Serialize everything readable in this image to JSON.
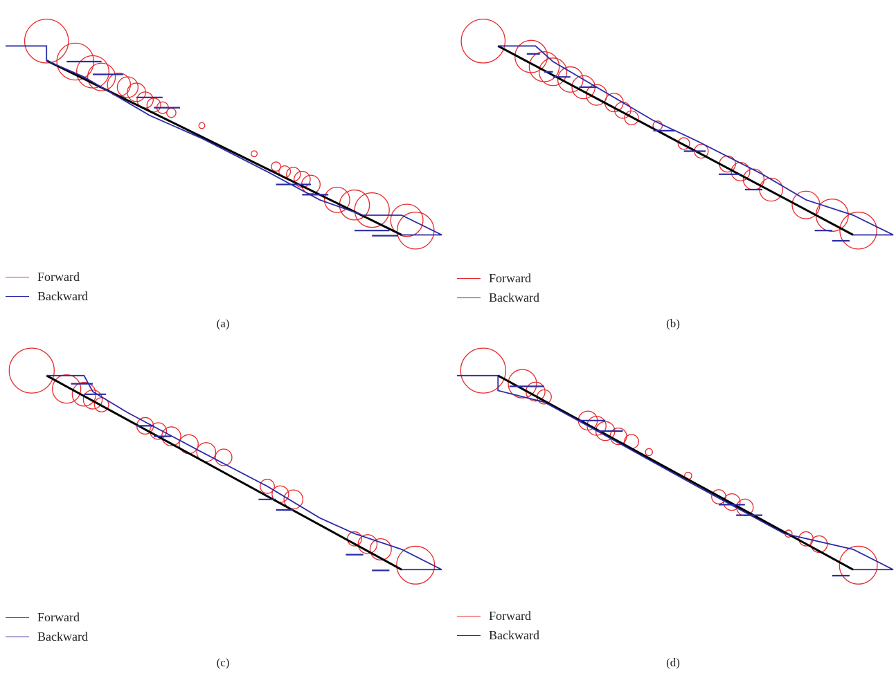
{
  "colors": {
    "forward": "#e8292c",
    "backward": "#2b2ba6",
    "path": "#000000"
  },
  "legend": [
    {
      "label": "Forward",
      "color_key": "forward"
    },
    {
      "label": "Backward",
      "color_key": "backward"
    }
  ],
  "panels": [
    {
      "caption": "(a)",
      "path": [
        [
          0.094,
          0.196
        ],
        [
          0.908,
          0.877
        ]
      ],
      "backward_polyline": [
        [
          0,
          0.139
        ],
        [
          0.094,
          0.139
        ],
        [
          0.094,
          0.196
        ],
        [
          0.18,
          0.26
        ],
        [
          0.33,
          0.41
        ],
        [
          0.45,
          0.5
        ],
        [
          0.6,
          0.63
        ],
        [
          0.72,
          0.74
        ],
        [
          0.82,
          0.8
        ],
        [
          0.908,
          0.8
        ],
        [
          1.0,
          0.877
        ],
        [
          0.908,
          0.877
        ]
      ],
      "backward_rungs": [
        [
          0.14,
          0.22,
          0.2
        ],
        [
          0.2,
          0.27,
          0.25
        ],
        [
          0.3,
          0.36,
          0.34
        ],
        [
          0.34,
          0.4,
          0.38
        ],
        [
          0.62,
          0.7,
          0.68
        ],
        [
          0.68,
          0.74,
          0.72
        ],
        [
          0.8,
          0.88,
          0.86
        ],
        [
          0.84,
          0.9,
          0.88
        ]
      ],
      "forward_circles": [
        [
          0.094,
          0.12,
          0.095
        ],
        [
          0.16,
          0.2,
          0.08
        ],
        [
          0.2,
          0.24,
          0.07
        ],
        [
          0.22,
          0.26,
          0.06
        ],
        [
          0.26,
          0.29,
          0.05
        ],
        [
          0.28,
          0.3,
          0.045
        ],
        [
          0.3,
          0.32,
          0.04
        ],
        [
          0.32,
          0.35,
          0.035
        ],
        [
          0.34,
          0.37,
          0.03
        ],
        [
          0.36,
          0.38,
          0.025
        ],
        [
          0.38,
          0.4,
          0.02
        ],
        [
          0.45,
          0.45,
          0.013
        ],
        [
          0.57,
          0.56,
          0.013
        ],
        [
          0.62,
          0.61,
          0.02
        ],
        [
          0.64,
          0.63,
          0.025
        ],
        [
          0.66,
          0.64,
          0.03
        ],
        [
          0.68,
          0.66,
          0.035
        ],
        [
          0.7,
          0.68,
          0.04
        ],
        [
          0.76,
          0.74,
          0.055
        ],
        [
          0.8,
          0.76,
          0.065
        ],
        [
          0.84,
          0.78,
          0.075
        ],
        [
          0.94,
          0.86,
          0.08
        ],
        [
          0.92,
          0.82,
          0.07
        ]
      ]
    },
    {
      "caption": "(b)",
      "path": [
        [
          0.094,
          0.139
        ],
        [
          0.908,
          0.877
        ]
      ],
      "backward_polyline": [
        [
          0.094,
          0.139
        ],
        [
          0.18,
          0.139
        ],
        [
          0.22,
          0.2
        ],
        [
          0.32,
          0.3
        ],
        [
          0.45,
          0.43
        ],
        [
          0.55,
          0.51
        ],
        [
          0.7,
          0.64
        ],
        [
          0.8,
          0.74
        ],
        [
          0.908,
          0.8
        ],
        [
          1.0,
          0.877
        ],
        [
          0.908,
          0.877
        ]
      ],
      "backward_rungs": [
        [
          0.16,
          0.19,
          0.17
        ],
        [
          0.2,
          0.22,
          0.24
        ],
        [
          0.22,
          0.26,
          0.26
        ],
        [
          0.28,
          0.32,
          0.3
        ],
        [
          0.45,
          0.5,
          0.47
        ],
        [
          0.52,
          0.57,
          0.55
        ],
        [
          0.6,
          0.65,
          0.64
        ],
        [
          0.66,
          0.7,
          0.7
        ],
        [
          0.82,
          0.86,
          0.86
        ],
        [
          0.86,
          0.9,
          0.9
        ]
      ],
      "forward_circles": [
        [
          0.06,
          0.12,
          0.095
        ],
        [
          0.17,
          0.18,
          0.07
        ],
        [
          0.2,
          0.22,
          0.065
        ],
        [
          0.22,
          0.24,
          0.06
        ],
        [
          0.26,
          0.27,
          0.055
        ],
        [
          0.29,
          0.3,
          0.05
        ],
        [
          0.32,
          0.33,
          0.045
        ],
        [
          0.36,
          0.36,
          0.04
        ],
        [
          0.38,
          0.39,
          0.035
        ],
        [
          0.4,
          0.42,
          0.03
        ],
        [
          0.46,
          0.45,
          0.02
        ],
        [
          0.52,
          0.52,
          0.025
        ],
        [
          0.56,
          0.55,
          0.03
        ],
        [
          0.62,
          0.6,
          0.035
        ],
        [
          0.65,
          0.63,
          0.04
        ],
        [
          0.68,
          0.66,
          0.045
        ],
        [
          0.72,
          0.7,
          0.05
        ],
        [
          0.8,
          0.76,
          0.06
        ],
        [
          0.86,
          0.8,
          0.07
        ],
        [
          0.92,
          0.86,
          0.08
        ]
      ]
    },
    {
      "caption": "(c)",
      "path": [
        [
          0.094,
          0.139
        ],
        [
          0.908,
          0.877
        ]
      ],
      "backward_polyline": [
        [
          0.094,
          0.139
        ],
        [
          0.18,
          0.139
        ],
        [
          0.2,
          0.2
        ],
        [
          0.28,
          0.28
        ],
        [
          0.45,
          0.43
        ],
        [
          0.6,
          0.56
        ],
        [
          0.72,
          0.68
        ],
        [
          0.8,
          0.74
        ],
        [
          0.908,
          0.8
        ],
        [
          1.0,
          0.877
        ],
        [
          0.908,
          0.877
        ]
      ],
      "backward_rungs": [
        [
          0.15,
          0.2,
          0.17
        ],
        [
          0.18,
          0.23,
          0.21
        ],
        [
          0.3,
          0.34,
          0.33
        ],
        [
          0.34,
          0.38,
          0.37
        ],
        [
          0.58,
          0.62,
          0.61
        ],
        [
          0.62,
          0.66,
          0.65
        ],
        [
          0.78,
          0.82,
          0.82
        ],
        [
          0.84,
          0.88,
          0.88
        ]
      ],
      "forward_circles": [
        [
          0.06,
          0.12,
          0.095
        ],
        [
          0.14,
          0.19,
          0.06
        ],
        [
          0.18,
          0.21,
          0.05
        ],
        [
          0.2,
          0.23,
          0.04
        ],
        [
          0.22,
          0.25,
          0.03
        ],
        [
          0.32,
          0.33,
          0.035
        ],
        [
          0.35,
          0.35,
          0.035
        ],
        [
          0.38,
          0.37,
          0.04
        ],
        [
          0.42,
          0.4,
          0.04
        ],
        [
          0.46,
          0.43,
          0.04
        ],
        [
          0.5,
          0.45,
          0.035
        ],
        [
          0.6,
          0.56,
          0.03
        ],
        [
          0.63,
          0.59,
          0.035
        ],
        [
          0.66,
          0.61,
          0.04
        ],
        [
          0.8,
          0.76,
          0.03
        ],
        [
          0.83,
          0.78,
          0.04
        ],
        [
          0.86,
          0.8,
          0.045
        ],
        [
          0.94,
          0.86,
          0.08
        ]
      ]
    },
    {
      "caption": "(d)",
      "path": [
        [
          0.094,
          0.139
        ],
        [
          0.908,
          0.877
        ]
      ],
      "backward_polyline": [
        [
          0,
          0.139
        ],
        [
          0.094,
          0.139
        ],
        [
          0.094,
          0.196
        ],
        [
          0.2,
          0.24
        ],
        [
          0.3,
          0.33
        ],
        [
          0.43,
          0.45
        ],
        [
          0.55,
          0.56
        ],
        [
          0.65,
          0.65
        ],
        [
          0.75,
          0.74
        ],
        [
          0.908,
          0.8
        ],
        [
          1.0,
          0.877
        ],
        [
          0.908,
          0.877
        ]
      ],
      "backward_rungs": [
        [
          0.12,
          0.2,
          0.18
        ],
        [
          0.28,
          0.34,
          0.31
        ],
        [
          0.32,
          0.38,
          0.35
        ],
        [
          0.6,
          0.66,
          0.63
        ],
        [
          0.64,
          0.7,
          0.67
        ],
        [
          0.86,
          0.9,
          0.9
        ]
      ],
      "forward_circles": [
        [
          0.06,
          0.12,
          0.095
        ],
        [
          0.15,
          0.17,
          0.06
        ],
        [
          0.18,
          0.2,
          0.04
        ],
        [
          0.2,
          0.22,
          0.03
        ],
        [
          0.3,
          0.31,
          0.04
        ],
        [
          0.32,
          0.33,
          0.04
        ],
        [
          0.34,
          0.35,
          0.04
        ],
        [
          0.37,
          0.37,
          0.035
        ],
        [
          0.4,
          0.39,
          0.03
        ],
        [
          0.44,
          0.43,
          0.015
        ],
        [
          0.53,
          0.52,
          0.015
        ],
        [
          0.6,
          0.6,
          0.03
        ],
        [
          0.63,
          0.62,
          0.035
        ],
        [
          0.66,
          0.64,
          0.035
        ],
        [
          0.76,
          0.74,
          0.015
        ],
        [
          0.8,
          0.76,
          0.03
        ],
        [
          0.83,
          0.78,
          0.035
        ],
        [
          0.92,
          0.86,
          0.08
        ]
      ]
    }
  ]
}
